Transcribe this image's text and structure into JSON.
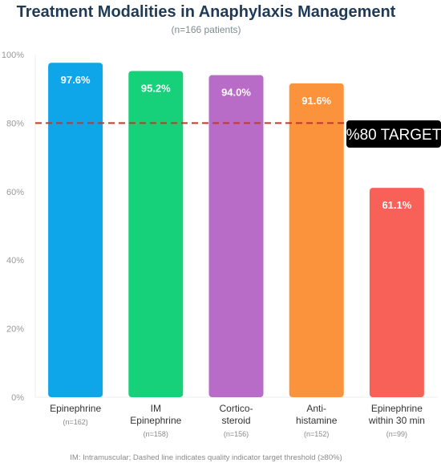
{
  "chart_data": {
    "type": "bar",
    "title": "Treatment Modalities in Anaphylaxis Management",
    "subtitle": "(n=166 patients)",
    "categories": [
      {
        "lines": [
          "Epinephrine"
        ],
        "n": "(n=162)"
      },
      {
        "lines": [
          "IM",
          "Epinephrine"
        ],
        "n": "(n=158)"
      },
      {
        "lines": [
          "Cortico-",
          "steroid"
        ],
        "n": "(n=156)"
      },
      {
        "lines": [
          "Anti-",
          "histamine"
        ],
        "n": "(n=152)"
      },
      {
        "lines": [
          "Epinephrine",
          "within 30 min"
        ],
        "n": "(n=99)"
      }
    ],
    "values": [
      97.6,
      95.2,
      94.0,
      91.6,
      61.1
    ],
    "value_labels": [
      "97.6%",
      "95.2%",
      "94.0%",
      "91.6%",
      "61.1%"
    ],
    "colors": [
      "#0ea5e9",
      "#16d17a",
      "#b86cc7",
      "#fb923c",
      "#f76157"
    ],
    "y_tick_labels": [
      "0%",
      "20%",
      "40%",
      "60%",
      "80%",
      "100%"
    ],
    "ylim": [
      0,
      100
    ],
    "grid": false,
    "target": {
      "value": 80,
      "label": "%80 TARGET",
      "color": "#c0392b"
    },
    "footnote": "IM: Intramuscular; Dashed line indicates quality indicator target threshold (≥80%)"
  }
}
